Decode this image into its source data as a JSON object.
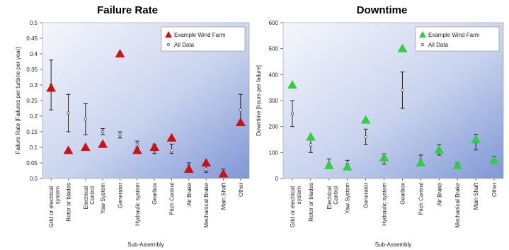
{
  "chart_data": [
    {
      "type": "scatter",
      "title": "Failure Rate",
      "xlabel": "Sub-Assembly",
      "ylabel": "Failure Rate [Failures per turbine per year]",
      "ylim": [
        0,
        0.5
      ],
      "yticks": [
        "0.0",
        "0.05",
        "0.1",
        "0.15",
        "0.2",
        "0.25",
        "0.3",
        "0.35",
        "0.4",
        "0.45",
        "0.5"
      ],
      "categories": [
        "Grid or electrical system",
        "Rotor or blades",
        "Electrical Control",
        "Yaw System",
        "Generator",
        "Hydraulic system",
        "Gearbox",
        "Pitch Control",
        "Air Brake",
        "Mechanical Brake",
        "Main Shaft",
        "Other"
      ],
      "legend_position": "top-right",
      "series": [
        {
          "name": "Example Wind Farm",
          "marker": "triangle",
          "color": "#cc1111",
          "values": [
            0.29,
            0.09,
            0.1,
            0.11,
            0.4,
            0.09,
            0.1,
            0.13,
            0.03,
            0.05,
            0.015,
            0.18
          ]
        },
        {
          "name": "All Data",
          "marker": "circle",
          "color": "#333333",
          "values": [
            0.3,
            0.21,
            0.19,
            0.15,
            0.14,
            0.11,
            0.09,
            0.09,
            0.04,
            0.03,
            0.02,
            0.22
          ],
          "error_low": [
            0.22,
            0.15,
            0.14,
            0.14,
            0.13,
            0.1,
            0.08,
            0.08,
            0.02,
            0.02,
            0.01,
            0.17
          ],
          "error_high": [
            0.38,
            0.27,
            0.24,
            0.16,
            0.15,
            0.12,
            0.11,
            0.11,
            0.05,
            0.045,
            0.03,
            0.27
          ]
        }
      ]
    },
    {
      "type": "scatter",
      "title": "Downtime",
      "xlabel": "Sub-Assembly",
      "ylabel": "Downtime [hours per failure]",
      "ylim": [
        0,
        600
      ],
      "yticks": [
        "0",
        "100",
        "200",
        "300",
        "400",
        "500",
        "600"
      ],
      "categories": [
        "Grid or electrical system",
        "Rotor or blades",
        "Electrical Control",
        "Yaw System",
        "Generator",
        "Hydraulic system",
        "Gearbox",
        "Pitch Control",
        "Air Brake",
        "Mechanical Brake",
        "Main Shaft",
        "Other"
      ],
      "legend_position": "top-right",
      "series": [
        {
          "name": "Example Wind Farm",
          "marker": "triangle",
          "color": "#33cc44",
          "values": [
            360,
            160,
            50,
            45,
            225,
            80,
            500,
            60,
            110,
            50,
            150,
            70
          ]
        },
        {
          "name": "All Data",
          "marker": "circle",
          "color": "#333333",
          "values": [
            250,
            130,
            60,
            55,
            160,
            75,
            340,
            70,
            110,
            50,
            140,
            70
          ],
          "error_low": [
            200,
            100,
            40,
            40,
            130,
            55,
            270,
            50,
            90,
            40,
            110,
            60
          ],
          "error_high": [
            300,
            160,
            75,
            70,
            190,
            95,
            410,
            90,
            130,
            60,
            170,
            85
          ]
        }
      ]
    }
  ]
}
